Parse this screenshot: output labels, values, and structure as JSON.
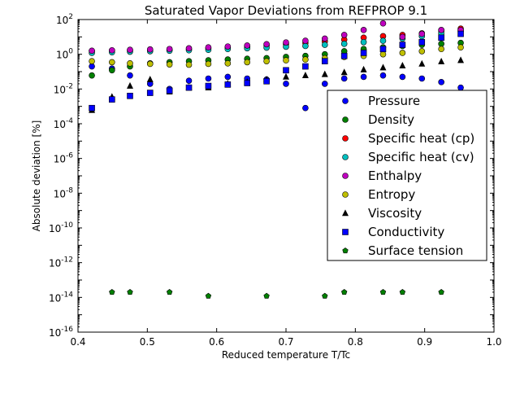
{
  "chart_data": {
    "type": "scatter",
    "title": "Saturated Vapor Deviations from REFPROP 9.1",
    "xlabel": "Reduced temperature T/Tc",
    "ylabel": "Absolute deviation [%]",
    "xlim": [
      0.4,
      1.0
    ],
    "ylim_log10": [
      -16,
      2
    ],
    "y_scale": "log",
    "x_ticks": [
      "0.4",
      "0.5",
      "0.6",
      "0.7",
      "0.8",
      "0.9",
      "1.0"
    ],
    "y_ticks": [
      {
        "base": "10",
        "exp": "-16",
        "value": -16
      },
      {
        "base": "10",
        "exp": "-14",
        "value": -14
      },
      {
        "base": "10",
        "exp": "-12",
        "value": -12
      },
      {
        "base": "10",
        "exp": "-10",
        "value": -10
      },
      {
        "base": "10",
        "exp": "-8",
        "value": -8
      },
      {
        "base": "10",
        "exp": "-6",
        "value": -6
      },
      {
        "base": "10",
        "exp": "-4",
        "value": -4
      },
      {
        "base": "10",
        "exp": "-2",
        "value": -2
      },
      {
        "base": "10",
        "exp": "0",
        "value": 0
      },
      {
        "base": "10",
        "exp": "2",
        "value": 2
      }
    ],
    "grid": false,
    "legend_position": "right",
    "series": [
      {
        "name": "Pressure",
        "color": "#0000ff",
        "marker": "circle",
        "x": [
          0.42,
          0.449,
          0.475,
          0.504,
          0.532,
          0.56,
          0.588,
          0.616,
          0.644,
          0.672,
          0.7,
          0.728,
          0.756,
          0.784,
          0.812,
          0.84,
          0.868,
          0.896,
          0.924,
          0.952
        ],
        "y": [
          0.2,
          0.15,
          0.06,
          0.02,
          0.01,
          0.03,
          0.04,
          0.05,
          0.04,
          0.035,
          0.02,
          0.0008,
          0.02,
          0.04,
          0.05,
          0.06,
          0.05,
          0.04,
          0.025,
          0.012
        ]
      },
      {
        "name": "Density",
        "color": "#008000",
        "marker": "circle",
        "x": [
          0.42,
          0.449,
          0.475,
          0.504,
          0.532,
          0.56,
          0.588,
          0.616,
          0.644,
          0.672,
          0.7,
          0.728,
          0.756,
          0.784,
          0.812,
          0.84,
          0.868,
          0.896,
          0.924,
          0.952
        ],
        "y": [
          0.06,
          0.12,
          0.2,
          0.3,
          0.35,
          0.4,
          0.45,
          0.5,
          0.55,
          0.6,
          0.7,
          0.8,
          1.0,
          1.5,
          2.0,
          2.5,
          3.0,
          3.5,
          4.0,
          4.5
        ]
      },
      {
        "name": "Specific heat (cp)",
        "color": "#ff0000",
        "marker": "circle",
        "x": [
          0.42,
          0.449,
          0.475,
          0.504,
          0.532,
          0.56,
          0.588,
          0.616,
          0.644,
          0.672,
          0.7,
          0.728,
          0.756,
          0.784,
          0.812,
          0.84,
          0.868,
          0.896,
          0.924,
          0.952
        ],
        "y": [
          1.5,
          1.6,
          1.7,
          1.8,
          1.9,
          2.0,
          2.2,
          2.4,
          2.8,
          3.2,
          3.8,
          4.5,
          5.5,
          7.0,
          9.0,
          11.0,
          13.0,
          16.0,
          22.0,
          30.0
        ]
      },
      {
        "name": "Specific heat (cv)",
        "color": "#00bfbf",
        "marker": "circle",
        "x": [
          0.42,
          0.449,
          0.475,
          0.504,
          0.532,
          0.56,
          0.588,
          0.616,
          0.644,
          0.672,
          0.7,
          0.728,
          0.756,
          0.784,
          0.812,
          0.84,
          0.868,
          0.896,
          0.924,
          0.952
        ],
        "y": [
          1.2,
          1.3,
          1.4,
          1.5,
          1.6,
          1.7,
          1.8,
          2.0,
          2.2,
          2.4,
          2.7,
          3.0,
          3.5,
          4.0,
          5.0,
          6.0,
          8.0,
          11.0,
          16.0,
          22.0
        ]
      },
      {
        "name": "Enthalpy",
        "color": "#bf00bf",
        "marker": "circle",
        "x": [
          0.42,
          0.449,
          0.475,
          0.504,
          0.532,
          0.56,
          0.588,
          0.616,
          0.644,
          0.672,
          0.7,
          0.728,
          0.756,
          0.784,
          0.812,
          0.84,
          0.868,
          0.896,
          0.924,
          0.952
        ],
        "y": [
          1.6,
          1.7,
          1.8,
          1.9,
          2.0,
          2.2,
          2.5,
          2.8,
          3.2,
          3.8,
          4.8,
          6.0,
          8.0,
          13.0,
          25.0,
          60.0,
          10.0,
          15.0,
          25.0,
          25.0
        ]
      },
      {
        "name": "Entropy",
        "color": "#bfbf00",
        "marker": "circle",
        "x": [
          0.42,
          0.449,
          0.475,
          0.504,
          0.532,
          0.56,
          0.588,
          0.616,
          0.644,
          0.672,
          0.7,
          0.728,
          0.756,
          0.784,
          0.812,
          0.84,
          0.868,
          0.896,
          0.924,
          0.952
        ],
        "y": [
          0.4,
          0.35,
          0.3,
          0.28,
          0.26,
          0.25,
          0.28,
          0.3,
          0.35,
          0.4,
          0.45,
          0.5,
          0.6,
          0.7,
          0.8,
          1.0,
          1.2,
          1.5,
          2.0,
          2.5
        ]
      },
      {
        "name": "Viscosity",
        "color": "#000000",
        "marker": "triangle",
        "x": [
          0.42,
          0.449,
          0.475,
          0.504,
          0.532,
          0.56,
          0.588,
          0.616,
          0.644,
          0.672,
          0.7,
          0.728,
          0.756,
          0.784,
          0.812,
          0.84,
          0.868,
          0.896,
          0.924,
          0.952
        ],
        "y": [
          0.0006,
          0.0035,
          0.015,
          0.035,
          0.007,
          0.012,
          0.012,
          0.02,
          0.025,
          0.035,
          0.05,
          0.06,
          0.07,
          0.09,
          0.13,
          0.17,
          0.22,
          0.28,
          0.38,
          0.45
        ]
      },
      {
        "name": "Conductivity",
        "color": "#0000ff",
        "marker": "square",
        "x": [
          0.42,
          0.449,
          0.475,
          0.504,
          0.532,
          0.56,
          0.588,
          0.616,
          0.644,
          0.672,
          0.7,
          0.728,
          0.756,
          0.784,
          0.812,
          0.84,
          0.868,
          0.896,
          0.924,
          0.952
        ],
        "y": [
          0.0008,
          0.0025,
          0.004,
          0.006,
          0.008,
          0.012,
          0.015,
          0.018,
          0.022,
          0.028,
          0.12,
          0.2,
          0.4,
          0.8,
          1.2,
          2.0,
          3.5,
          5.0,
          9.0,
          15.0
        ]
      },
      {
        "name": "Surface tension",
        "color": "#008000",
        "marker": "pentagon",
        "x": [
          0.449,
          0.475,
          0.532,
          0.588,
          0.672,
          0.756,
          0.784,
          0.84,
          0.868,
          0.924
        ],
        "y": [
          2e-14,
          2e-14,
          2e-14,
          1.2e-14,
          1.2e-14,
          1.2e-14,
          2e-14,
          2e-14,
          2e-14,
          2e-14
        ]
      }
    ]
  }
}
